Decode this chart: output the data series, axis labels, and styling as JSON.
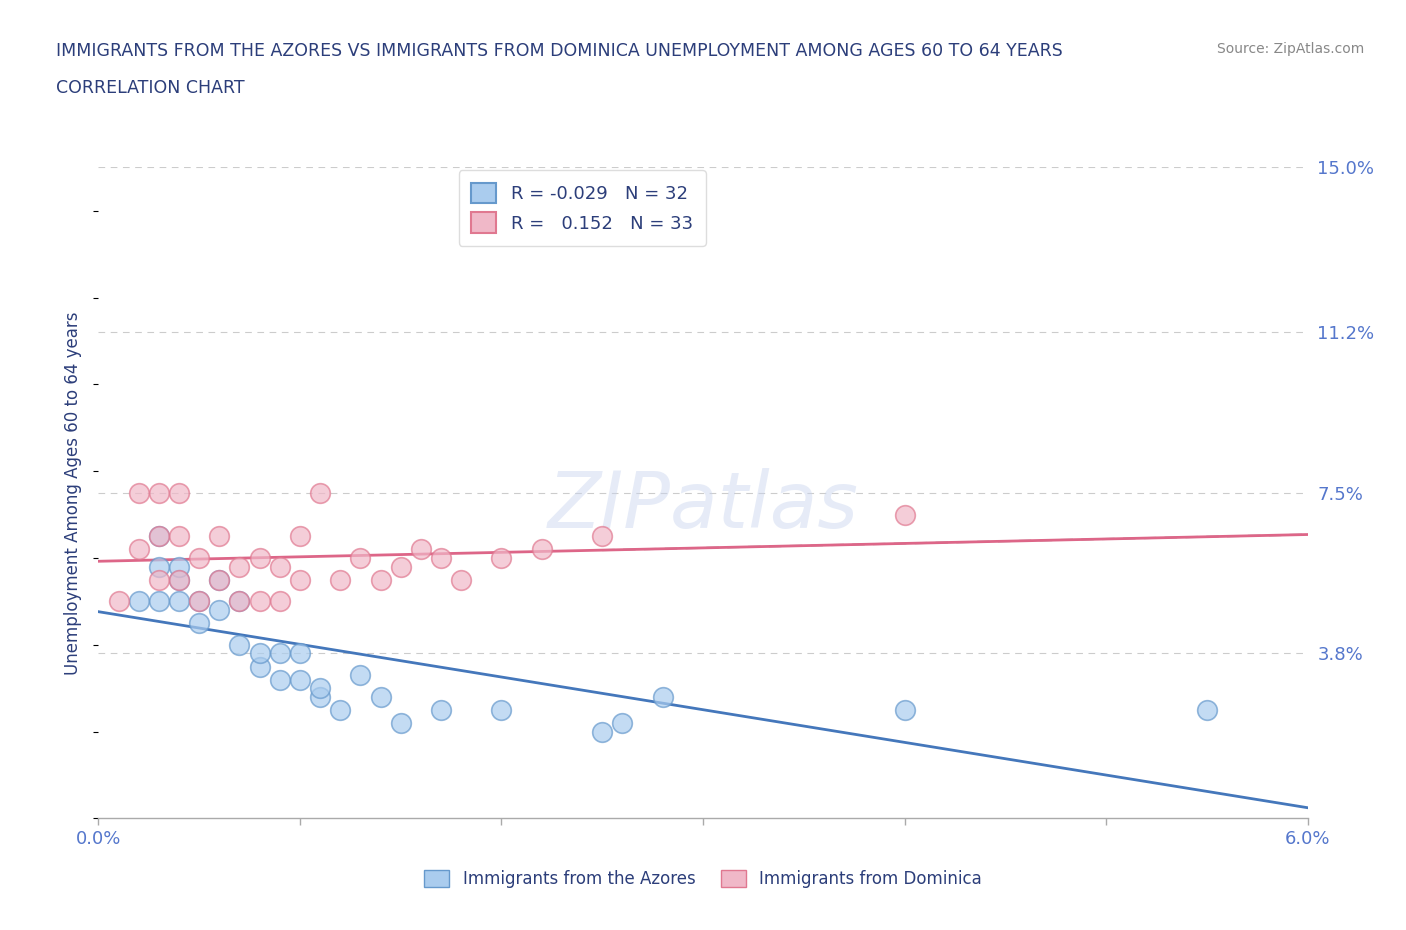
{
  "title_line1": "IMMIGRANTS FROM THE AZORES VS IMMIGRANTS FROM DOMINICA UNEMPLOYMENT AMONG AGES 60 TO 64 YEARS",
  "title_line2": "CORRELATION CHART",
  "source_text": "Source: ZipAtlas.com",
  "ylabel": "Unemployment Among Ages 60 to 64 years",
  "xlim": [
    0.0,
    0.06
  ],
  "ylim": [
    0.0,
    0.15
  ],
  "ytick_positions": [
    0.038,
    0.075,
    0.112,
    0.15
  ],
  "ytick_labels": [
    "3.8%",
    "7.5%",
    "11.2%",
    "15.0%"
  ],
  "watermark": "ZIPatlas",
  "color_azores_fill": "#aaccee",
  "color_azores_edge": "#6699cc",
  "color_dominica_fill": "#f0b8c8",
  "color_dominica_edge": "#e07890",
  "color_line_azores": "#4477bb",
  "color_line_dominica": "#dd6688",
  "color_title": "#2c3e7a",
  "color_axis_labels": "#5577cc",
  "color_grid": "#cccccc",
  "background_color": "#ffffff",
  "azores_x": [
    0.002,
    0.003,
    0.003,
    0.003,
    0.004,
    0.004,
    0.004,
    0.005,
    0.005,
    0.006,
    0.006,
    0.007,
    0.007,
    0.008,
    0.008,
    0.009,
    0.009,
    0.01,
    0.01,
    0.011,
    0.011,
    0.012,
    0.013,
    0.014,
    0.015,
    0.017,
    0.02,
    0.025,
    0.026,
    0.028,
    0.04,
    0.055
  ],
  "azores_y": [
    0.05,
    0.05,
    0.058,
    0.065,
    0.05,
    0.055,
    0.058,
    0.045,
    0.05,
    0.048,
    0.055,
    0.04,
    0.05,
    0.035,
    0.038,
    0.032,
    0.038,
    0.032,
    0.038,
    0.028,
    0.03,
    0.025,
    0.033,
    0.028,
    0.022,
    0.025,
    0.025,
    0.02,
    0.022,
    0.028,
    0.025,
    0.025
  ],
  "dominica_x": [
    0.001,
    0.002,
    0.002,
    0.003,
    0.003,
    0.003,
    0.004,
    0.004,
    0.004,
    0.005,
    0.005,
    0.006,
    0.006,
    0.007,
    0.007,
    0.008,
    0.008,
    0.009,
    0.009,
    0.01,
    0.01,
    0.011,
    0.012,
    0.013,
    0.014,
    0.015,
    0.016,
    0.017,
    0.018,
    0.02,
    0.022,
    0.025,
    0.04
  ],
  "dominica_y": [
    0.05,
    0.062,
    0.075,
    0.055,
    0.065,
    0.075,
    0.055,
    0.065,
    0.075,
    0.05,
    0.06,
    0.055,
    0.065,
    0.05,
    0.058,
    0.05,
    0.06,
    0.05,
    0.058,
    0.055,
    0.065,
    0.075,
    0.055,
    0.06,
    0.055,
    0.058,
    0.062,
    0.06,
    0.055,
    0.06,
    0.062,
    0.065,
    0.07
  ]
}
